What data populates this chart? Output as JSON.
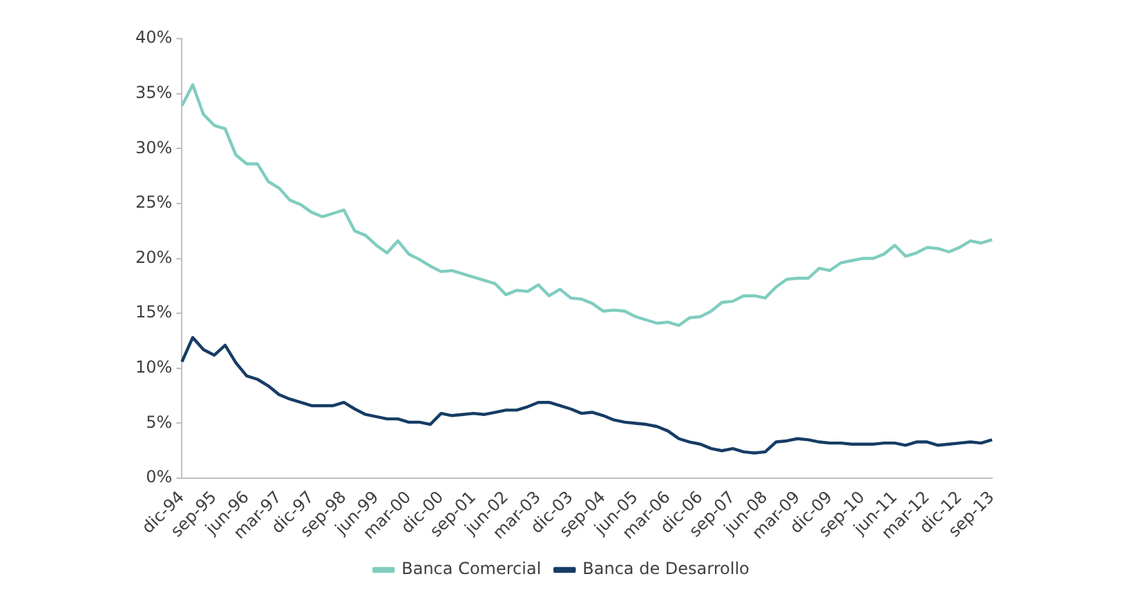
{
  "chart_data": {
    "type": "line",
    "categories": [
      "dic-94",
      null,
      null,
      "sep-95",
      null,
      null,
      "jun-96",
      null,
      null,
      "mar-97",
      null,
      null,
      "dic-97",
      null,
      null,
      "sep-98",
      null,
      null,
      "jun-99",
      null,
      null,
      "mar-00",
      null,
      null,
      "dic-00",
      null,
      null,
      "sep-01",
      null,
      null,
      "jun-02",
      null,
      null,
      "mar-03",
      null,
      null,
      "dic-03",
      null,
      null,
      "sep-04",
      null,
      null,
      "jun-05",
      null,
      null,
      "mar-06",
      null,
      null,
      "dic-06",
      null,
      null,
      "sep-07",
      null,
      null,
      "jun-08",
      null,
      null,
      "mar-09",
      null,
      null,
      "dic-09",
      null,
      null,
      "sep-10",
      null,
      null,
      "jun-11",
      null,
      null,
      "mar-12",
      null,
      null,
      "dic-12",
      null,
      null,
      "sep-13"
    ],
    "series": [
      {
        "name": "Banca Comercial",
        "color": "#7fcdc0",
        "values": [
          33.9,
          35.8,
          33.1,
          32.1,
          31.8,
          29.4,
          28.6,
          28.6,
          27.0,
          26.4,
          25.3,
          24.9,
          24.2,
          23.8,
          24.1,
          24.4,
          22.5,
          22.1,
          21.2,
          20.5,
          21.6,
          20.4,
          19.9,
          19.3,
          18.8,
          18.9,
          18.6,
          18.3,
          18.0,
          17.7,
          16.7,
          17.1,
          17.0,
          17.6,
          16.6,
          17.2,
          16.4,
          16.3,
          15.9,
          15.2,
          15.3,
          15.2,
          14.7,
          14.4,
          14.1,
          14.2,
          13.9,
          14.6,
          14.7,
          15.2,
          16.0,
          16.1,
          16.6,
          16.6,
          16.4,
          17.4,
          18.1,
          18.2,
          18.2,
          19.1,
          18.9,
          19.6,
          19.8,
          20.0,
          20.0,
          20.4,
          21.2,
          20.2,
          20.5,
          21.0,
          20.9,
          20.6,
          21.0,
          21.6,
          21.4,
          21.7
        ]
      },
      {
        "name": "Banca de Desarrollo",
        "color": "#163c64",
        "values": [
          10.6,
          12.8,
          11.7,
          11.2,
          12.1,
          10.5,
          9.3,
          9.0,
          8.4,
          7.6,
          7.2,
          6.9,
          6.6,
          6.6,
          6.6,
          6.9,
          6.3,
          5.8,
          5.6,
          5.4,
          5.4,
          5.1,
          5.1,
          4.9,
          5.9,
          5.7,
          5.8,
          5.9,
          5.8,
          6.0,
          6.2,
          6.2,
          6.5,
          6.9,
          6.9,
          6.6,
          6.3,
          5.9,
          6.0,
          5.7,
          5.3,
          5.1,
          5.0,
          4.9,
          4.7,
          4.3,
          3.6,
          3.3,
          3.1,
          2.7,
          2.5,
          2.7,
          2.4,
          2.3,
          2.4,
          3.3,
          3.4,
          3.6,
          3.5,
          3.3,
          3.2,
          3.2,
          3.1,
          3.1,
          3.1,
          3.2,
          3.2,
          3.0,
          3.3,
          3.3,
          3.0,
          3.1,
          3.2,
          3.3,
          3.2,
          3.5
        ]
      }
    ],
    "ylim": [
      0,
      40
    ],
    "yticks": [
      {
        "value": 0,
        "label": "0%"
      },
      {
        "value": 5,
        "label": "5%"
      },
      {
        "value": 10,
        "label": "10%"
      },
      {
        "value": 15,
        "label": "15%"
      },
      {
        "value": 20,
        "label": "20%"
      },
      {
        "value": 25,
        "label": "25%"
      },
      {
        "value": 30,
        "label": "30%"
      },
      {
        "value": 35,
        "label": "35%"
      },
      {
        "value": 40,
        "label": "40%"
      }
    ],
    "grid": false,
    "legend": "bottom",
    "marker": "none",
    "line_style": "solid"
  }
}
